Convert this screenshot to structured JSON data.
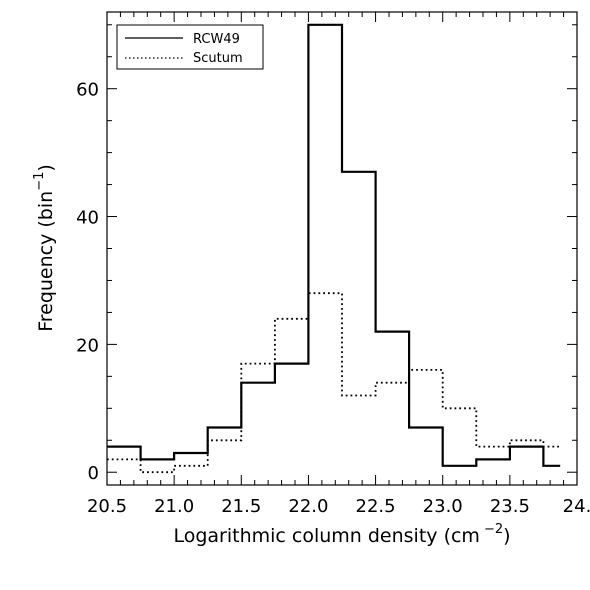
{
  "chart_data": {
    "type": "histogram",
    "xlabel_main": "Logarithmic column density (cm",
    "xlabel_exp": "−2",
    "xlabel_close": ")",
    "ylabel_main": "Frequency (bin",
    "ylabel_exp": "−1",
    "ylabel_close": ")",
    "xlim": [
      20.5,
      24.0
    ],
    "ylim": [
      -2,
      72
    ],
    "xticks": [
      20.5,
      21.0,
      21.5,
      22.0,
      22.5,
      23.0,
      23.5,
      24.0
    ],
    "xtick_labels": [
      "20.5",
      "21.0",
      "21.5",
      "22.0",
      "22.5",
      "23.0",
      "23.5",
      "24."
    ],
    "yticks": [
      0,
      20,
      40,
      60
    ],
    "ytick_labels": [
      "0",
      "20",
      "40",
      "60"
    ],
    "bin_edges": [
      20.5,
      20.75,
      21.0,
      21.25,
      21.5,
      21.75,
      22.0,
      22.25,
      22.5,
      22.75,
      23.0,
      23.25,
      23.5,
      23.75,
      23.875
    ],
    "series": [
      {
        "name": "RCW49",
        "style": "solid",
        "values": [
          4,
          2,
          3,
          7,
          14,
          17,
          70,
          47,
          22,
          7,
          1,
          2,
          4,
          1
        ]
      },
      {
        "name": "Scutum",
        "style": "dotted",
        "values": [
          2,
          0,
          1,
          5,
          17,
          24,
          28,
          12,
          14,
          16,
          10,
          4,
          5,
          4
        ]
      }
    ],
    "legend_position": "top-left",
    "grid": false,
    "colors": {
      "line": "#000000",
      "background": "#ffffff"
    }
  }
}
